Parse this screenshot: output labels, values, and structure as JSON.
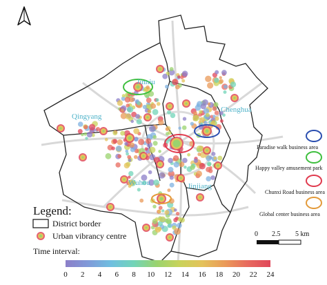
{
  "districts": [
    {
      "name": "Jinniu"
    },
    {
      "name": "Qingyang"
    },
    {
      "name": "Chenghua"
    },
    {
      "name": "Wuhou"
    },
    {
      "name": "Jinjiang"
    }
  ],
  "legend": {
    "title": "Legend:",
    "district_border": "District border",
    "vibrancy_centre": "Urban vibrancy centre",
    "time_interval_label": "Time interval:",
    "ticks": [
      "0",
      "2",
      "4",
      "6",
      "8",
      "10",
      "12",
      "14",
      "16",
      "18",
      "20",
      "22",
      "24"
    ],
    "gradient_colors": [
      "#8c7fc8",
      "#7f9ad9",
      "#6fbfe0",
      "#72d4b8",
      "#9ad36e",
      "#c8d35a",
      "#e4c25a",
      "#ea9a58",
      "#e86a5e",
      "#e0475a"
    ]
  },
  "areas": [
    {
      "label": "Paradise walk business area",
      "color": "#2b4fb0"
    },
    {
      "label": "Happy valley amusement park",
      "color": "#3fbf3f"
    },
    {
      "label": "Chunxi Road business area",
      "color": "#e03a4e"
    },
    {
      "label": "Global center business area",
      "color": "#e39a3a"
    }
  ],
  "scale": {
    "labels": [
      "0",
      "2.5",
      "5 km"
    ]
  },
  "north_arrow": {
    "icon": "north-arrow-icon"
  }
}
